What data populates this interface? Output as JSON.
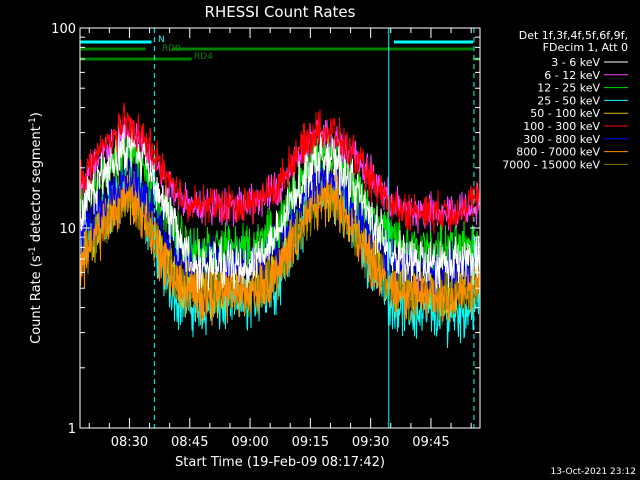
{
  "chart_data": {
    "type": "line",
    "title": "RHESSI Count Rates",
    "xlabel": "Start Time (19-Feb-09 08:17:42)",
    "ylabel_main": "Count Rate (s",
    "ylabel_sup": "-1",
    "ylabel_mid": " detector segment",
    "ylabel_sup2": "-1",
    "ylabel_end": ")",
    "y_scale": "log",
    "ylim": [
      1,
      100
    ],
    "y_ticks": [
      {
        "value": 1,
        "label": "1"
      },
      {
        "value": 10,
        "label": "10"
      },
      {
        "value": 100,
        "label": "100"
      }
    ],
    "xlim_minutes": [
      17.7,
      117.2
    ],
    "x_ticks": [
      {
        "minute": 30,
        "label": "08:30"
      },
      {
        "minute": 45,
        "label": "08:45"
      },
      {
        "minute": 60,
        "label": "09:00"
      },
      {
        "minute": 75,
        "label": "09:15"
      },
      {
        "minute": 90,
        "label": "09:30"
      },
      {
        "minute": 105,
        "label": "09:45"
      }
    ],
    "legend_header": [
      "Det 1f,3f,4f,5f,6f,9f,",
      "FDecim 1, Att 0"
    ],
    "legend_position": "right",
    "series": [
      {
        "name": "3 - 6 keV",
        "color": "#ffffff",
        "x_minutes": [
          17.7,
          26,
          28.5,
          31,
          34,
          38,
          42,
          46,
          60,
          67,
          72,
          76,
          78.5,
          81,
          85,
          90,
          95,
          100,
          105,
          110,
          114,
          117.2
        ],
        "y": [
          11.5,
          22,
          25,
          25.5,
          22,
          14,
          9,
          6.5,
          6.5,
          9,
          16,
          22,
          23,
          21.5,
          17,
          11,
          7.5,
          6.6,
          6.6,
          6.6,
          6.8,
          7
        ]
      },
      {
        "name": "6 - 12 keV",
        "color": "#ff40ff",
        "x_minutes": [
          17.7,
          26,
          28.5,
          31,
          34,
          38,
          42,
          46,
          60,
          67,
          72,
          76,
          78.5,
          81,
          85,
          90,
          95,
          100,
          105,
          110,
          114,
          117.2
        ],
        "y": [
          16,
          27,
          30,
          29.5,
          25,
          18.5,
          15,
          13,
          13,
          15.5,
          22.5,
          28,
          30,
          28,
          24,
          18,
          13.5,
          12,
          12,
          12,
          12.5,
          13.5
        ]
      },
      {
        "name": "12 - 25 keV",
        "color": "#00e000",
        "x_minutes": [
          17.7,
          26,
          28.5,
          31,
          34,
          38,
          42,
          46,
          60,
          67,
          72,
          76,
          78.5,
          81,
          85,
          90,
          95,
          100,
          105,
          110,
          114,
          117.2
        ],
        "y": [
          12,
          20.5,
          24,
          23.5,
          19,
          13,
          9.5,
          8,
          8,
          10,
          16.5,
          22,
          25,
          23,
          18,
          12,
          9,
          8,
          8,
          8,
          8.3,
          9
        ]
      },
      {
        "name": "25 - 50 keV",
        "color": "#00ffff",
        "x_minutes": [
          17.7,
          26,
          28.5,
          31,
          34,
          38,
          42,
          46,
          60,
          67,
          72,
          76,
          78.5,
          81,
          85,
          90,
          95,
          100,
          105,
          110,
          114,
          117.2
        ],
        "y": [
          7,
          13,
          15.5,
          15,
          11.5,
          6.5,
          4.5,
          4,
          4.3,
          5.5,
          10,
          14,
          15.5,
          14.5,
          11,
          6.5,
          4.5,
          3.8,
          3.8,
          3.8,
          3.9,
          4.5
        ]
      },
      {
        "name": "50 - 100 keV",
        "color": "#e0c000",
        "x_minutes": [
          17.7,
          26,
          28.5,
          31,
          34,
          38,
          42,
          46,
          60,
          67,
          72,
          76,
          78.5,
          81,
          85,
          90,
          95,
          100,
          105,
          110,
          114,
          117.2
        ],
        "y": [
          7,
          12.5,
          15,
          14.5,
          11.5,
          7.5,
          5.5,
          5,
          5.2,
          6.2,
          10,
          13.5,
          15,
          14,
          11,
          7.5,
          5.6,
          5,
          5,
          5,
          5.2,
          5.8
        ]
      },
      {
        "name": "100 - 300 keV",
        "color": "#ff0000",
        "x_minutes": [
          17.7,
          26,
          28.5,
          31,
          34,
          38,
          42,
          46,
          60,
          67,
          72,
          76,
          78.5,
          81,
          85,
          90,
          95,
          100,
          105,
          110,
          114,
          117.2
        ],
        "y": [
          17,
          29,
          33,
          32,
          27,
          20,
          15,
          13,
          13,
          16,
          24,
          30,
          31.5,
          29.5,
          24,
          17,
          13,
          12,
          12,
          12,
          12.5,
          15
        ]
      },
      {
        "name": "300 - 800 keV",
        "color": "#0000ff",
        "x_minutes": [
          17.7,
          26,
          28.5,
          31,
          34,
          38,
          42,
          46,
          60,
          67,
          72,
          76,
          78.5,
          81,
          85,
          90,
          95,
          100,
          105,
          110,
          114,
          117.2
        ],
        "y": [
          9,
          16,
          19,
          18.5,
          15,
          10.5,
          8,
          7,
          7,
          8.5,
          13,
          17,
          18,
          17,
          14,
          9.5,
          7,
          6.5,
          6.5,
          6.5,
          6.7,
          7.5
        ]
      },
      {
        "name": "800 - 7000 keV",
        "color": "#ff8c00",
        "x_minutes": [
          17.7,
          26,
          28.5,
          31,
          34,
          38,
          42,
          46,
          60,
          67,
          72,
          76,
          78.5,
          81,
          85,
          90,
          95,
          100,
          105,
          110,
          114,
          117.2
        ],
        "y": [
          6.5,
          12,
          14.5,
          14,
          11,
          7,
          5.2,
          4.7,
          4.9,
          6,
          9.5,
          13,
          14.5,
          13.5,
          10.5,
          7,
          5.2,
          4.6,
          4.6,
          4.6,
          4.8,
          5.3
        ]
      },
      {
        "name": "7000 - 15000 keV",
        "color": "#7a7a00",
        "x_minutes": [
          17.7,
          26,
          28.5,
          31,
          34,
          38,
          42,
          46,
          60,
          67,
          72,
          76,
          78.5,
          81,
          85,
          90,
          95,
          100,
          105,
          110,
          114,
          117.2
        ],
        "y": [
          6.6,
          12.2,
          14.7,
          14.2,
          11.2,
          7.2,
          5.4,
          4.9,
          5.1,
          6.1,
          9.7,
          13.2,
          14.7,
          13.7,
          10.7,
          7.2,
          5.4,
          4.8,
          4.8,
          4.8,
          5,
          5.5
        ]
      }
    ],
    "flags": [
      {
        "label": "N",
        "color": "#00ffff",
        "segments": [
          [
            17.7,
            35.5
          ],
          [
            95.8,
            115.5
          ]
        ]
      },
      {
        "label": "RD0",
        "color": "#008000",
        "segments": [
          [
            17.7,
            34
          ],
          [
            40.5,
            115.5
          ]
        ]
      },
      {
        "label": "RD4",
        "color": "#008000",
        "segments": [
          [
            17.7,
            45.5
          ],
          [
            115.5,
            117.2
          ]
        ]
      }
    ],
    "vlines": [
      {
        "minute": 36.2,
        "style": "dashed",
        "color": "#00ffff"
      },
      {
        "minute": 94.5,
        "style": "solid",
        "color": "#00ffff"
      },
      {
        "minute": 115.7,
        "style": "dashed",
        "color": "#00ffff"
      }
    ],
    "footer_timestamp": "13-Oct-2021 23:12"
  }
}
